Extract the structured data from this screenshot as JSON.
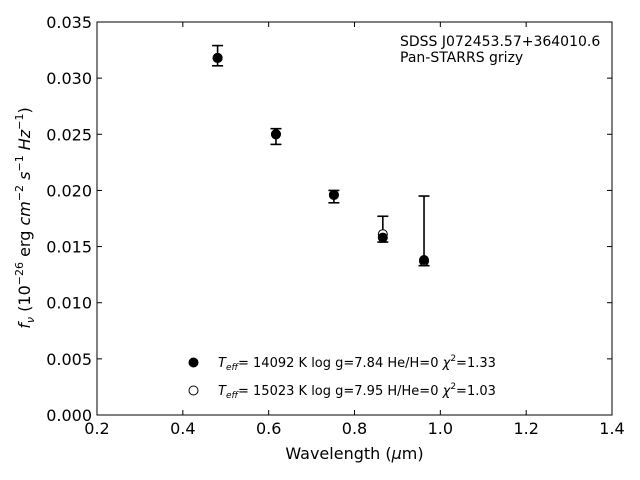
{
  "chart_data": {
    "type": "scatter",
    "annotation": [
      "SDSS J072453.57+364010.6",
      "Pan-STARRS grizy"
    ],
    "xlabel": "Wavelength (μm)",
    "ylabel": "f_ν (10^−26 erg cm^−2 s^−1 Hz^−1)",
    "xlim": [
      0.2,
      1.4
    ],
    "ylim": [
      0.0,
      0.035
    ],
    "xticks": [
      "0.2",
      "0.4",
      "0.6",
      "0.8",
      "1.0",
      "1.2",
      "1.4"
    ],
    "yticks": [
      "0.000",
      "0.005",
      "0.010",
      "0.015",
      "0.020",
      "0.025",
      "0.030",
      "0.035"
    ],
    "grid": false,
    "legend_position": "lower-center",
    "observed": {
      "x": [
        0.481,
        0.617,
        0.752,
        0.866,
        0.962
      ],
      "y": [
        0.0318,
        0.025,
        0.0196,
        0.016,
        0.0137
      ],
      "yerr_low": [
        0.0007,
        0.0009,
        0.0007,
        0.0006,
        0.0004
      ],
      "yerr_high": [
        0.0011,
        0.0005,
        0.0004,
        0.0017,
        0.0058
      ]
    },
    "series": [
      {
        "name": "T_eff= 14092 K log g=7.84 He/H=0 χ²=1.33",
        "marker": "filled-circle",
        "x": [
          0.481,
          0.617,
          0.752,
          0.866,
          0.962
        ],
        "y": [
          0.0318,
          0.025,
          0.0196,
          0.0158,
          0.0138
        ]
      },
      {
        "name": "T_eff= 15023 K log g=7.95 H/He=0 χ²=1.03",
        "marker": "open-circle",
        "x": [
          0.481,
          0.617,
          0.752,
          0.866,
          0.962
        ],
        "y": [
          0.0318,
          0.025,
          0.0196,
          0.0161,
          0.0137
        ]
      }
    ]
  },
  "legend": {
    "entries": [
      {
        "teff": "14092 K",
        "logg": "log g=7.84",
        "comp": "He/H=0",
        "chi2": "=1.33"
      },
      {
        "teff": "15023 K",
        "logg": "log g=7.95",
        "comp": "H/He=0",
        "chi2": "=1.03"
      }
    ]
  }
}
